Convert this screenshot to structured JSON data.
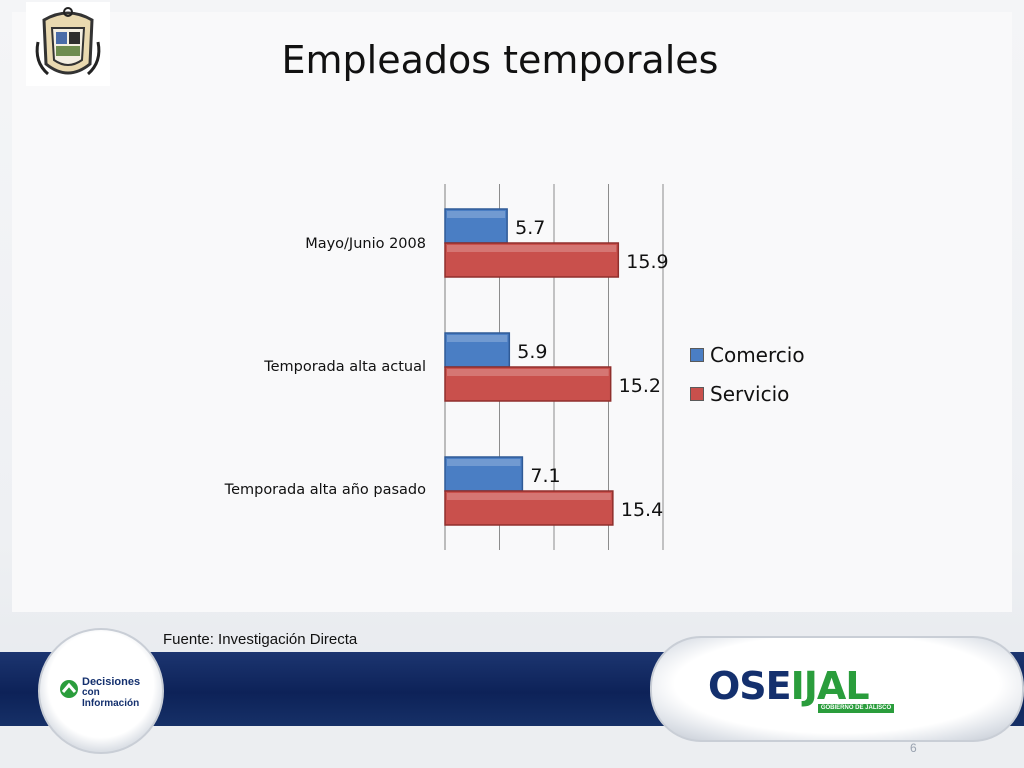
{
  "slide": {
    "title": "Empleados temporales",
    "source": "Fuente: Investigación Directa",
    "page_number": "6"
  },
  "logos": {
    "left_brand_line1": "Decisiones",
    "left_brand_line2": "con Información",
    "right_brand_part1": "OSE",
    "right_brand_part2": "IJAL",
    "right_brand_tagline": "GOBIERNO DE JALISCO"
  },
  "colors": {
    "comercio": "#4a7ec4",
    "servicio": "#c9504c"
  },
  "chart_data": {
    "type": "bar",
    "orientation": "horizontal",
    "categories": [
      "Mayo/Junio 2008",
      "Temporada alta actual",
      "Temporada alta año pasado"
    ],
    "series": [
      {
        "name": "Comercio",
        "values": [
          5.7,
          5.9,
          7.1
        ]
      },
      {
        "name": "Servicio",
        "values": [
          15.9,
          15.2,
          15.4
        ]
      }
    ],
    "xlim": [
      0,
      20
    ],
    "grid": true,
    "legend": "right"
  }
}
